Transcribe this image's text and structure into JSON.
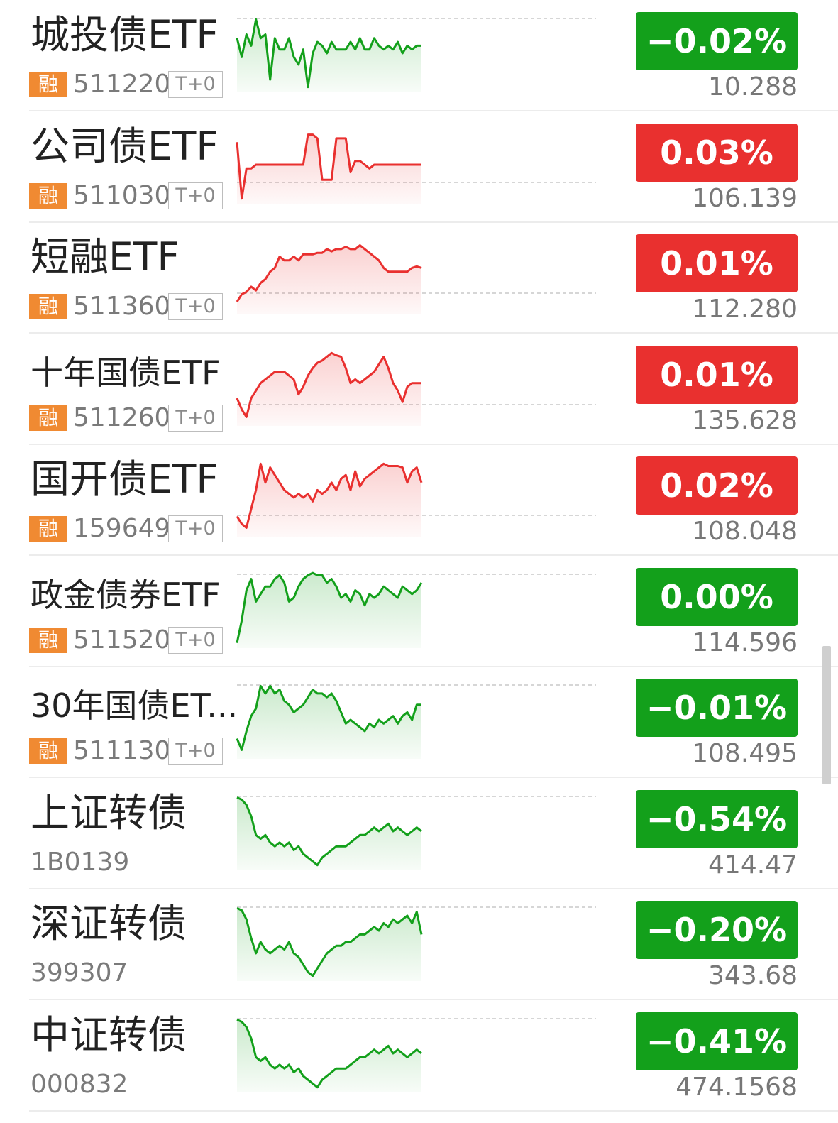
{
  "colors": {
    "up": "#e9302f",
    "down": "#13a01b",
    "badge": "#f08a32"
  },
  "rows": [
    {
      "name": "城投债ETF",
      "badge": "融",
      "code": "511220",
      "tplus": "T+0",
      "change": "-0.02%",
      "price": "10.288",
      "dir": "down",
      "trend": [
        0.3,
        0.55,
        0.25,
        0.4,
        0.05,
        0.3,
        0.25,
        0.85,
        0.3,
        0.45,
        0.45,
        0.3,
        0.55,
        0.65,
        0.45,
        0.95,
        0.5,
        0.35,
        0.4,
        0.5,
        0.35,
        0.45,
        0.45,
        0.45,
        0.35,
        0.45,
        0.3,
        0.45,
        0.45,
        0.3,
        0.4,
        0.45,
        0.4,
        0.45,
        0.35,
        0.5,
        0.4,
        0.45,
        0.4,
        0.4
      ]
    },
    {
      "name": "公司债ETF",
      "badge": "融",
      "code": "511030",
      "tplus": "T+0",
      "change": "0.03%",
      "price": "106.139",
      "dir": "up",
      "trend": [
        0.2,
        0.95,
        0.55,
        0.55,
        0.5,
        0.5,
        0.5,
        0.5,
        0.5,
        0.5,
        0.5,
        0.5,
        0.5,
        0.5,
        0.5,
        0.1,
        0.1,
        0.15,
        0.7,
        0.7,
        0.7,
        0.15,
        0.15,
        0.15,
        0.6,
        0.45,
        0.45,
        0.5,
        0.55,
        0.5,
        0.5,
        0.5,
        0.5,
        0.5,
        0.5,
        0.5,
        0.5,
        0.5,
        0.5,
        0.5
      ]
    },
    {
      "name": "短融ETF",
      "badge": "融",
      "code": "511360",
      "tplus": "T+0",
      "change": "0.01%",
      "price": "112.280",
      "dir": "up",
      "trend": [
        0.85,
        0.75,
        0.72,
        0.65,
        0.7,
        0.6,
        0.55,
        0.45,
        0.4,
        0.25,
        0.3,
        0.3,
        0.25,
        0.3,
        0.22,
        0.22,
        0.22,
        0.2,
        0.2,
        0.15,
        0.18,
        0.15,
        0.15,
        0.12,
        0.15,
        0.15,
        0.1,
        0.15,
        0.2,
        0.25,
        0.3,
        0.4,
        0.45,
        0.45,
        0.45,
        0.45,
        0.45,
        0.4,
        0.38,
        0.4
      ]
    },
    {
      "name": "十年国债ETF",
      "badge": "融",
      "code": "511260",
      "tplus": "T+0",
      "change": "0.01%",
      "price": "135.628",
      "dir": "up",
      "trend": [
        0.65,
        0.8,
        0.9,
        0.65,
        0.55,
        0.45,
        0.4,
        0.35,
        0.3,
        0.3,
        0.3,
        0.35,
        0.4,
        0.6,
        0.5,
        0.35,
        0.25,
        0.18,
        0.15,
        0.1,
        0.05,
        0.08,
        0.1,
        0.25,
        0.45,
        0.4,
        0.45,
        0.4,
        0.35,
        0.3,
        0.2,
        0.1,
        0.25,
        0.45,
        0.55,
        0.7,
        0.5,
        0.45,
        0.45,
        0.45
      ]
    },
    {
      "name": "国开债ETF",
      "badge": "融",
      "code": "159649",
      "tplus": "T+0",
      "change": "0.02%",
      "price": "108.048",
      "dir": "up",
      "trend": [
        0.75,
        0.85,
        0.9,
        0.65,
        0.4,
        0.05,
        0.3,
        0.1,
        0.2,
        0.3,
        0.4,
        0.45,
        0.5,
        0.45,
        0.5,
        0.45,
        0.55,
        0.4,
        0.45,
        0.4,
        0.3,
        0.4,
        0.25,
        0.2,
        0.4,
        0.15,
        0.35,
        0.25,
        0.2,
        0.15,
        0.1,
        0.05,
        0.08,
        0.08,
        0.08,
        0.1,
        0.3,
        0.15,
        0.1,
        0.3
      ]
    },
    {
      "name": "政金债券ETF",
      "badge": "融",
      "code": "511520",
      "tplus": "T+0",
      "change": "0.00%",
      "price": "114.596",
      "dir": "down",
      "trend": [
        0.95,
        0.65,
        0.25,
        0.1,
        0.4,
        0.3,
        0.2,
        0.2,
        0.1,
        0.05,
        0.15,
        0.4,
        0.35,
        0.2,
        0.1,
        0.05,
        0.02,
        0.05,
        0.05,
        0.15,
        0.1,
        0.2,
        0.35,
        0.3,
        0.4,
        0.25,
        0.3,
        0.45,
        0.3,
        0.35,
        0.3,
        0.2,
        0.25,
        0.3,
        0.35,
        0.2,
        0.25,
        0.3,
        0.25,
        0.15
      ]
    },
    {
      "name": "30年国债ET...",
      "badge": "融",
      "code": "511130",
      "tplus": "T+0",
      "change": "-0.01%",
      "price": "108.495",
      "dir": "down",
      "trend": [
        0.75,
        0.9,
        0.65,
        0.45,
        0.35,
        0.05,
        0.15,
        0.05,
        0.15,
        0.1,
        0.25,
        0.3,
        0.4,
        0.35,
        0.3,
        0.2,
        0.1,
        0.15,
        0.15,
        0.2,
        0.15,
        0.25,
        0.4,
        0.55,
        0.5,
        0.55,
        0.6,
        0.65,
        0.55,
        0.6,
        0.5,
        0.55,
        0.5,
        0.45,
        0.55,
        0.45,
        0.4,
        0.5,
        0.3,
        0.3
      ]
    },
    {
      "name": "上证转债",
      "badge": "",
      "code": "1B0139",
      "tplus": "",
      "change": "-0.54%",
      "price": "414.47",
      "dir": "down",
      "trend": [
        0.05,
        0.08,
        0.15,
        0.3,
        0.55,
        0.6,
        0.55,
        0.65,
        0.7,
        0.65,
        0.7,
        0.65,
        0.75,
        0.7,
        0.8,
        0.85,
        0.9,
        0.95,
        0.85,
        0.8,
        0.75,
        0.7,
        0.7,
        0.7,
        0.65,
        0.6,
        0.55,
        0.55,
        0.5,
        0.45,
        0.5,
        0.45,
        0.4,
        0.5,
        0.45,
        0.5,
        0.55,
        0.5,
        0.45,
        0.5
      ]
    },
    {
      "name": "深证转债",
      "badge": "",
      "code": "399307",
      "tplus": "",
      "change": "-0.20%",
      "price": "343.68",
      "dir": "down",
      "trend": [
        0.05,
        0.08,
        0.2,
        0.45,
        0.65,
        0.5,
        0.6,
        0.65,
        0.6,
        0.55,
        0.6,
        0.5,
        0.65,
        0.7,
        0.8,
        0.9,
        0.95,
        0.85,
        0.75,
        0.65,
        0.6,
        0.55,
        0.55,
        0.5,
        0.5,
        0.45,
        0.4,
        0.4,
        0.35,
        0.3,
        0.35,
        0.25,
        0.3,
        0.2,
        0.25,
        0.2,
        0.15,
        0.25,
        0.1,
        0.4
      ]
    },
    {
      "name": "中证转债",
      "badge": "",
      "code": "000832",
      "tplus": "",
      "change": "-0.41%",
      "price": "474.1568",
      "dir": "down",
      "trend": [
        0.05,
        0.08,
        0.15,
        0.3,
        0.55,
        0.6,
        0.55,
        0.65,
        0.7,
        0.65,
        0.7,
        0.65,
        0.75,
        0.7,
        0.8,
        0.85,
        0.9,
        0.95,
        0.85,
        0.8,
        0.75,
        0.7,
        0.7,
        0.7,
        0.65,
        0.6,
        0.55,
        0.55,
        0.5,
        0.45,
        0.5,
        0.45,
        0.4,
        0.5,
        0.45,
        0.5,
        0.55,
        0.5,
        0.45,
        0.5
      ]
    }
  ]
}
